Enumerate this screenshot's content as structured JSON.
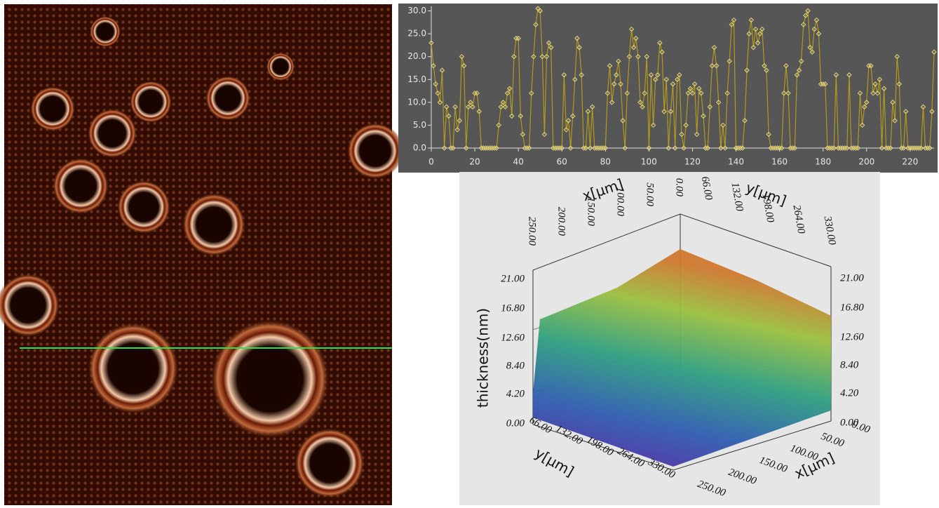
{
  "chart_data": {
    "type": "line",
    "x": [
      0,
      1,
      2,
      3,
      4,
      5,
      6,
      7,
      8,
      9,
      10,
      11,
      12,
      13,
      14,
      15,
      16,
      17,
      18,
      19,
      20,
      21,
      22,
      23,
      24,
      25,
      26,
      27,
      28,
      29,
      30,
      31,
      32,
      33,
      34,
      35,
      36,
      37,
      38,
      39,
      40,
      41,
      42,
      43,
      44,
      45,
      46,
      47,
      48,
      49,
      50,
      51,
      52,
      53,
      54,
      55,
      56,
      57,
      58,
      59,
      60,
      61,
      62,
      63,
      64,
      65,
      66,
      67,
      68,
      69,
      70,
      71,
      72,
      73,
      74,
      75,
      76,
      77,
      78,
      79,
      80,
      81,
      82,
      83,
      84,
      85,
      86,
      87,
      88,
      89,
      90,
      91,
      92,
      93,
      94,
      95,
      96,
      97,
      98,
      99,
      100,
      101,
      102,
      103,
      104,
      105,
      106,
      107,
      108,
      109,
      110,
      111,
      112,
      113,
      114,
      115,
      116,
      117,
      118,
      119,
      120,
      121,
      122,
      123,
      124,
      125,
      126,
      127,
      128,
      129,
      130,
      131,
      132,
      133,
      134,
      135,
      136,
      137,
      138,
      139,
      140,
      141,
      142,
      143,
      144,
      145,
      146,
      147,
      148,
      149,
      150,
      151,
      152,
      153,
      154,
      155,
      156,
      157,
      158,
      159,
      160,
      161,
      162,
      163,
      164,
      165,
      166,
      167,
      168,
      169,
      170,
      171,
      172,
      173,
      174,
      175,
      176,
      177,
      178,
      179,
      180,
      181,
      182,
      183,
      184,
      185,
      186,
      187,
      188,
      189,
      190,
      191,
      192,
      193,
      194,
      195,
      196,
      197,
      198,
      199,
      200,
      201,
      202,
      203,
      204,
      205,
      206,
      207,
      208,
      209,
      210,
      211,
      212,
      213,
      214,
      215,
      216,
      217,
      218,
      219,
      220,
      221,
      222,
      223,
      224,
      225,
      226,
      227,
      228,
      229,
      230,
      231
    ],
    "series": [
      {
        "color": "#b39a1c",
        "values": [
          23,
          18,
          14,
          12,
          10,
          17,
          0,
          9,
          7,
          0,
          0,
          9,
          4,
          6,
          20,
          18,
          0,
          9,
          10,
          9,
          12,
          12,
          8,
          0,
          0,
          0,
          0,
          0,
          0,
          0,
          0,
          5,
          9,
          10,
          9,
          12,
          13,
          7,
          20,
          24,
          24,
          7,
          3,
          0,
          0,
          0,
          12,
          20,
          27,
          30.5,
          30,
          20,
          3,
          20,
          23,
          22,
          0,
          0,
          0,
          0,
          0,
          16,
          4,
          6,
          0,
          7,
          15,
          24,
          22,
          16,
          0,
          0,
          8,
          0,
          9,
          0,
          0,
          0,
          0,
          0,
          0,
          12,
          18,
          10,
          14,
          16,
          19,
          14,
          6,
          0,
          12,
          20,
          26,
          22,
          24,
          20,
          10,
          9,
          12,
          20,
          0,
          16,
          5,
          15,
          16,
          23,
          21,
          8,
          15,
          0,
          8,
          14,
          0,
          15,
          16,
          3,
          0,
          5,
          12,
          13,
          12,
          14,
          3,
          13,
          12,
          7,
          0,
          0,
          9,
          18,
          22,
          18,
          10,
          0,
          5,
          0,
          12,
          19,
          27,
          28,
          0,
          0,
          0,
          0,
          6,
          17,
          25,
          28,
          22,
          26,
          23,
          25,
          26,
          18,
          17,
          3,
          0,
          0,
          0,
          0,
          0,
          0,
          12,
          18,
          12,
          0,
          0,
          0,
          16,
          17,
          19,
          27,
          29,
          30,
          22,
          21,
          26,
          28,
          25,
          14,
          14,
          14,
          0,
          0,
          0,
          0,
          16,
          0,
          0,
          0,
          0,
          0,
          16,
          0,
          0,
          0,
          0,
          12,
          5,
          9,
          10,
          18,
          18,
          12,
          14,
          12,
          15,
          0,
          13,
          0,
          0,
          0,
          10,
          6,
          20,
          14,
          0,
          0,
          8,
          0,
          0,
          0,
          0,
          0,
          0,
          0,
          9,
          0,
          0,
          0,
          8,
          21
        ]
      }
    ],
    "xlim": [
      0,
      231
    ],
    "ylim": [
      0,
      31
    ],
    "xticks": [
      0,
      20,
      40,
      60,
      80,
      100,
      120,
      140,
      160,
      180,
      200,
      220
    ],
    "yticks": [
      {
        "value": 0,
        "label": "0.0"
      },
      {
        "value": 5,
        "label": "5.0"
      },
      {
        "value": 10,
        "label": "10.0"
      },
      {
        "value": 15,
        "label": "15.0"
      },
      {
        "value": 20,
        "label": "20.0"
      },
      {
        "value": 25,
        "label": "25.0"
      },
      {
        "value": 30,
        "label": "30.0"
      }
    ]
  },
  "surface_plot": {
    "z_label": "thickness(nm)",
    "z_ticks": [
      "0.00",
      "4.20",
      "8.40",
      "12.60",
      "16.80",
      "21.00"
    ],
    "x_label": "x[µm]",
    "x_ticks": [
      "0.00",
      "50.00",
      "100.00",
      "150.00",
      "200.00",
      "250.00"
    ],
    "y_label": "y[µm]",
    "y_ticks": [
      "66.00",
      "132.00",
      "198.00",
      "264.00",
      "330.00"
    ]
  }
}
